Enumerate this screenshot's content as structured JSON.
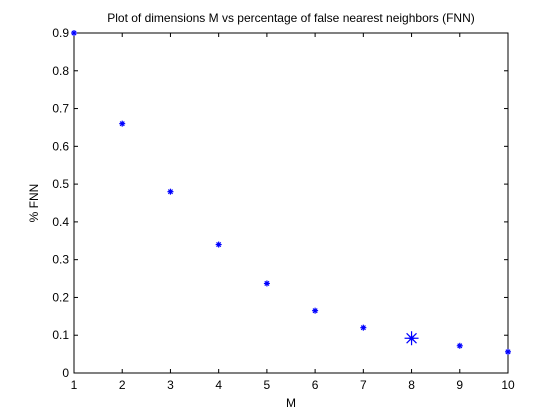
{
  "chart_data": {
    "type": "scatter",
    "title": "Plot of dimensions M vs percentage of false nearest neighbors (FNN)",
    "xlabel": "M",
    "ylabel": "% FNN",
    "xlim": [
      1,
      10
    ],
    "ylim": [
      0,
      0.9
    ],
    "xticks": [
      "1",
      "2",
      "3",
      "4",
      "5",
      "6",
      "7",
      "8",
      "9",
      "10"
    ],
    "yticks": [
      "0",
      "0.1",
      "0.2",
      "0.3",
      "0.4",
      "0.5",
      "0.6",
      "0.7",
      "0.8",
      "0.9"
    ],
    "grid": false,
    "legend": "none",
    "series": [
      {
        "marker": "*",
        "color": "#0000ff",
        "x": [
          1,
          2,
          3,
          4,
          5,
          6,
          7,
          8,
          9,
          10
        ],
        "y": [
          0.9,
          0.66,
          0.48,
          0.34,
          0.237,
          0.165,
          0.12,
          0.092,
          0.072,
          0.056
        ]
      }
    ],
    "highlight": {
      "marker": "*",
      "color": "#0000ff",
      "x": 8,
      "y": 0.092
    }
  }
}
